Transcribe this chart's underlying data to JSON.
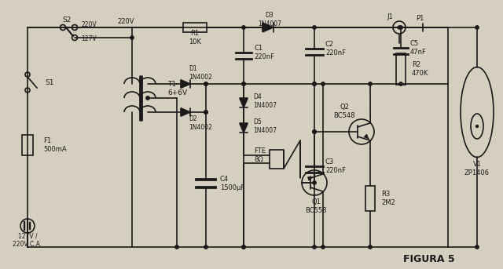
{
  "title": "FIGURA 5",
  "bg_color": "#d4cfbf",
  "line_color": "#1a1a1a",
  "lw": 1.2,
  "fs": 6.0,
  "components": {
    "S2_label": "S2",
    "S1_label": "S1",
    "F1_label": "F1\n500mA",
    "T1_label": "T1\n6+6V",
    "D1_label": "D1\n1N4002",
    "D2_label": "D2\n1N4002",
    "C4_label": "C4\n1500μF",
    "R1_label": "R1\n10K",
    "C1_label": "C1\n220nF",
    "D4_label": "D4\n1N4007",
    "D5_label": "D5\n1N4007",
    "D3_label": "D3\n1N4007",
    "C2_label": "C2\n220nF",
    "C3_label": "C3\n220nF",
    "C5_label": "C5\n47nF",
    "R2_label": "R2\n470K",
    "J1_label": "J1",
    "P1_label": "P1",
    "V1_label": "V1\nZP1406",
    "FTE_label": "FTE\n8Ω",
    "Q2_label": "Q2\nBC548",
    "Q1_label": "Q1\nBC558",
    "R3_label": "R3\n2M2",
    "v220": "220V",
    "v127": "127V",
    "plug_label": "127V /\n220V C.A."
  }
}
